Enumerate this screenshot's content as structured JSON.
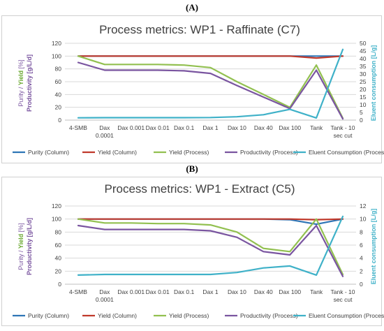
{
  "chart_data": [
    {
      "panel_label": "(A)",
      "type": "line",
      "title": "Process metrics: WP1 - Raffinate (C7)",
      "categories": [
        "4-SMB",
        "Dax 0.0001",
        "Dax 0.001",
        "Dax 0.01",
        "Dax 0.1",
        "Dax 1",
        "Dax 10",
        "Dax 40",
        "Dax 100",
        "Tank",
        "Tank - 10 sec cut"
      ],
      "category_lines": [
        [
          "4-SMB"
        ],
        [
          "Dax",
          "0.0001"
        ],
        [
          "Dax 0.001"
        ],
        [
          "Dax 0.01"
        ],
        [
          "Dax 0.1"
        ],
        [
          "Dax 1"
        ],
        [
          "Dax 10"
        ],
        [
          "Dax 40"
        ],
        [
          "Dax 100"
        ],
        [
          "Tank"
        ],
        [
          "Tank - 10",
          "sec cut"
        ]
      ],
      "ylabel_left": {
        "part1": "Purity / ",
        "part2": "Yield",
        "part3": " [%]",
        "part4": "Productivity [g/L/d]"
      },
      "ylabel_right": "Eluent consumption [L/g]",
      "ylim_left": [
        0,
        120
      ],
      "left_ticks": [
        "0",
        "20",
        "40",
        "60",
        "80",
        "100",
        "120"
      ],
      "ylim_right": [
        0,
        50
      ],
      "right_ticks": [
        "0",
        "5",
        "10",
        "15",
        "20",
        "25",
        "30",
        "35",
        "40",
        "45",
        "50"
      ],
      "grid": true,
      "legend_position": "bottom",
      "series": [
        {
          "name": "Purity (Column)",
          "axis": "left",
          "color": "#2e75b6",
          "values": [
            100,
            100,
            100,
            100,
            100,
            100,
            100,
            100,
            100,
            100,
            100
          ]
        },
        {
          "name": "Yield (Column)",
          "axis": "left",
          "color": "#c0392b",
          "values": [
            100,
            100,
            100,
            100,
            100,
            100,
            100,
            100,
            100,
            97,
            100
          ]
        },
        {
          "name": "Yield (Process)",
          "axis": "left",
          "color": "#92c050",
          "values": [
            100,
            87,
            87,
            87,
            86,
            82,
            60,
            40,
            20,
            86,
            3
          ]
        },
        {
          "name": "Productivity (Process)",
          "axis": "left",
          "color": "#7a55a0",
          "values": [
            90,
            78,
            78,
            78,
            77,
            73,
            54,
            36,
            18,
            78,
            2
          ]
        },
        {
          "name": "Eluent Consumption (Process)",
          "axis": "right",
          "color": "#3fb1c8",
          "values": [
            1.5,
            1.6,
            1.6,
            1.6,
            1.6,
            1.7,
            2.2,
            3.5,
            7.0,
            1.4,
            46
          ]
        }
      ]
    },
    {
      "panel_label": "(B)",
      "type": "line",
      "title": "Process metrics: WP1 - Extract (C5)",
      "categories": [
        "4-SMB",
        "Dax 0.0001",
        "Dax 0.001",
        "Dax 0.01",
        "Dax 0.1",
        "Dax 1",
        "Dax 10",
        "Dax 40",
        "Dax 100",
        "Tank",
        "Tank - 10 sec cut"
      ],
      "category_lines": [
        [
          "4-SMB"
        ],
        [
          "Dax",
          "0.0001"
        ],
        [
          "Dax 0.001"
        ],
        [
          "Dax 0.01"
        ],
        [
          "Dax 0.1"
        ],
        [
          "Dax 1"
        ],
        [
          "Dax 10"
        ],
        [
          "Dax 40"
        ],
        [
          "Dax 100"
        ],
        [
          "Tank"
        ],
        [
          "Tank - 10",
          "sec cut"
        ]
      ],
      "ylabel_left": {
        "part1": "Purity / ",
        "part2": "Yield",
        "part3": " [%]",
        "part4": "Productivity [g/L/d]"
      },
      "ylabel_right": "Eluent consumption [L/g]",
      "ylim_left": [
        0,
        120
      ],
      "left_ticks": [
        "0",
        "20",
        "40",
        "60",
        "80",
        "100",
        "120"
      ],
      "ylim_right": [
        0,
        12
      ],
      "right_ticks": [
        "0",
        "2",
        "4",
        "6",
        "8",
        "10",
        "12"
      ],
      "grid": true,
      "legend_position": "bottom",
      "series": [
        {
          "name": "Purity (Column)",
          "axis": "left",
          "color": "#2e75b6",
          "values": [
            100,
            100,
            100,
            100,
            100,
            100,
            100,
            100,
            99,
            92,
            100
          ]
        },
        {
          "name": "Yield (Column)",
          "axis": "left",
          "color": "#c0392b",
          "values": [
            100,
            100,
            100,
            100,
            100,
            100,
            100,
            100,
            100,
            99,
            100
          ]
        },
        {
          "name": "Yield (Process)",
          "axis": "left",
          "color": "#92c050",
          "values": [
            100,
            94,
            94,
            93,
            93,
            91,
            80,
            55,
            50,
            100,
            15
          ]
        },
        {
          "name": "Productivity (Process)",
          "axis": "left",
          "color": "#7a55a0",
          "values": [
            90,
            84,
            84,
            84,
            84,
            82,
            72,
            50,
            45,
            90,
            12
          ]
        },
        {
          "name": "Eluent Consumption (Process)",
          "axis": "right",
          "color": "#3fb1c8",
          "values": [
            1.4,
            1.5,
            1.5,
            1.5,
            1.5,
            1.5,
            1.8,
            2.5,
            2.8,
            1.4,
            10.4
          ]
        }
      ]
    }
  ]
}
